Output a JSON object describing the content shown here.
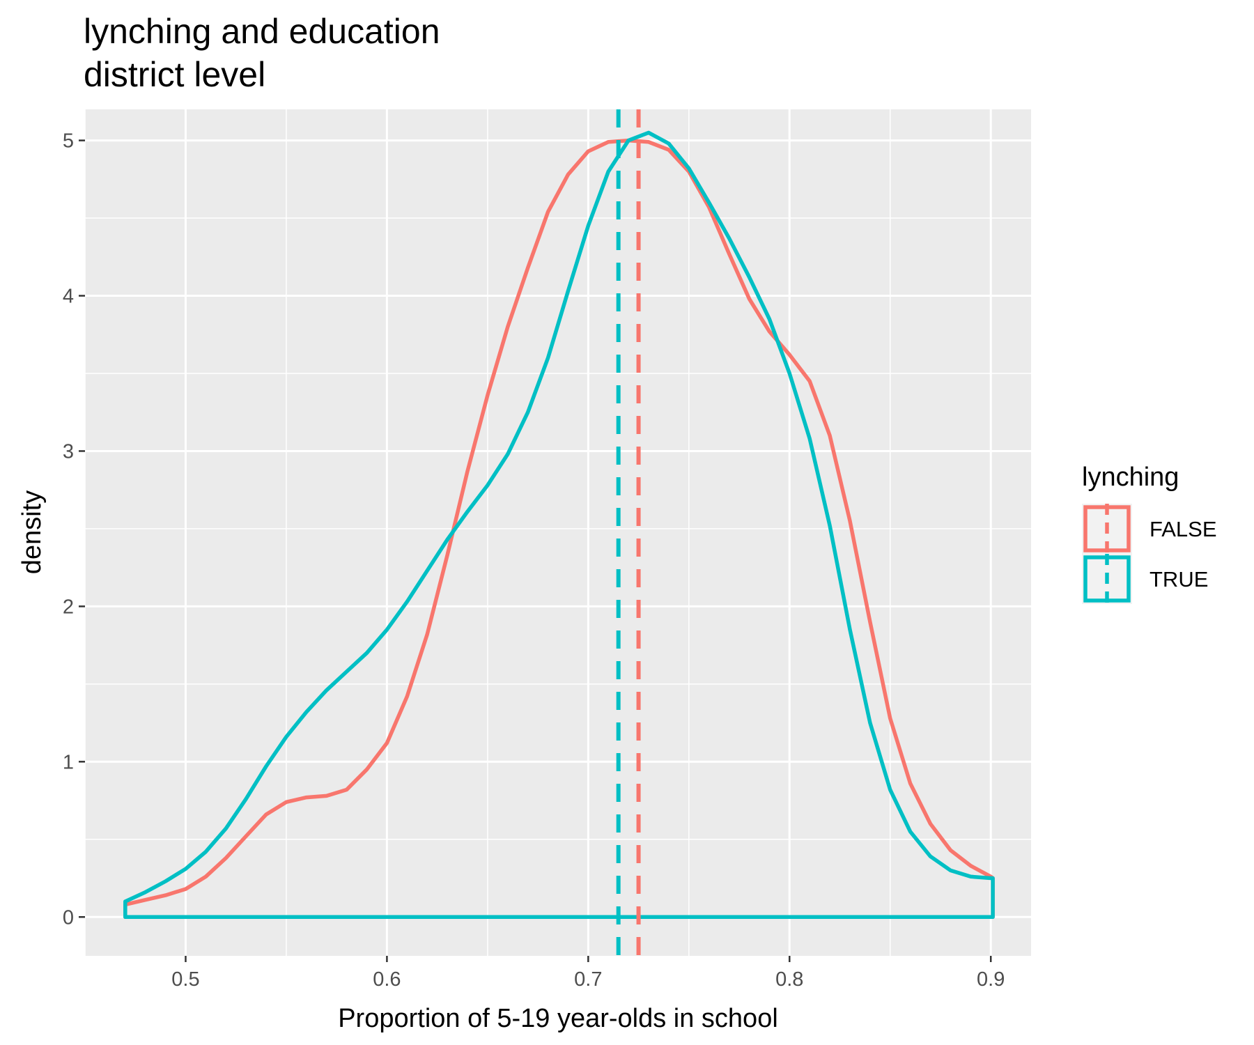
{
  "chart_data": {
    "type": "line",
    "subtype": "density",
    "title_lines": [
      "lynching and education",
      "district level"
    ],
    "xlabel": "Proportion of 5-19 year-olds in school",
    "ylabel": "density",
    "xlim": [
      0.45,
      0.92
    ],
    "ylim": [
      -0.25,
      5.2
    ],
    "x_ticks": [
      0.5,
      0.6,
      0.7,
      0.8,
      0.9
    ],
    "x_tick_labels": [
      "0.5",
      "0.6",
      "0.7",
      "0.8",
      "0.9"
    ],
    "y_ticks": [
      0,
      1,
      2,
      3,
      4,
      5
    ],
    "y_tick_labels": [
      "0",
      "1",
      "2",
      "3",
      "4",
      "5"
    ],
    "grid": true,
    "panel_background": "#ebebeb",
    "grid_color": "#ffffff",
    "legend": {
      "title": "lynching",
      "placement": "right",
      "entries": [
        "FALSE",
        "TRUE"
      ]
    },
    "series": [
      {
        "name": "FALSE",
        "color": "#f8766d",
        "mean": 0.725,
        "x": [
          0.47,
          0.48,
          0.49,
          0.5,
          0.51,
          0.52,
          0.53,
          0.54,
          0.55,
          0.56,
          0.57,
          0.58,
          0.59,
          0.6,
          0.61,
          0.62,
          0.63,
          0.64,
          0.65,
          0.66,
          0.67,
          0.68,
          0.69,
          0.7,
          0.71,
          0.72,
          0.73,
          0.74,
          0.75,
          0.76,
          0.77,
          0.78,
          0.79,
          0.8,
          0.81,
          0.82,
          0.83,
          0.84,
          0.85,
          0.86,
          0.87,
          0.88,
          0.89,
          0.9,
          0.901
        ],
        "y": [
          0.08,
          0.11,
          0.14,
          0.18,
          0.26,
          0.38,
          0.52,
          0.66,
          0.74,
          0.77,
          0.78,
          0.82,
          0.95,
          1.12,
          1.42,
          1.82,
          2.33,
          2.87,
          3.36,
          3.8,
          4.18,
          4.54,
          4.78,
          4.93,
          4.99,
          5.0,
          4.99,
          4.94,
          4.8,
          4.57,
          4.27,
          3.98,
          3.77,
          3.62,
          3.45,
          3.1,
          2.55,
          1.9,
          1.28,
          0.86,
          0.6,
          0.43,
          0.33,
          0.26,
          0.25
        ]
      },
      {
        "name": "TRUE",
        "color": "#00bfc4",
        "mean": 0.715,
        "x": [
          0.47,
          0.48,
          0.49,
          0.5,
          0.51,
          0.52,
          0.53,
          0.54,
          0.55,
          0.56,
          0.57,
          0.58,
          0.59,
          0.6,
          0.61,
          0.62,
          0.63,
          0.64,
          0.65,
          0.66,
          0.67,
          0.68,
          0.69,
          0.7,
          0.71,
          0.72,
          0.73,
          0.74,
          0.75,
          0.76,
          0.77,
          0.78,
          0.79,
          0.8,
          0.81,
          0.82,
          0.83,
          0.84,
          0.85,
          0.86,
          0.87,
          0.88,
          0.89,
          0.9,
          0.901
        ],
        "y": [
          0.1,
          0.16,
          0.23,
          0.31,
          0.42,
          0.57,
          0.76,
          0.97,
          1.16,
          1.32,
          1.46,
          1.58,
          1.7,
          1.85,
          2.03,
          2.23,
          2.43,
          2.61,
          2.78,
          2.98,
          3.25,
          3.6,
          4.03,
          4.45,
          4.8,
          5.0,
          5.05,
          4.98,
          4.82,
          4.6,
          4.37,
          4.12,
          3.85,
          3.5,
          3.08,
          2.52,
          1.85,
          1.25,
          0.82,
          0.55,
          0.39,
          0.3,
          0.26,
          0.25,
          0.25
        ]
      }
    ]
  }
}
